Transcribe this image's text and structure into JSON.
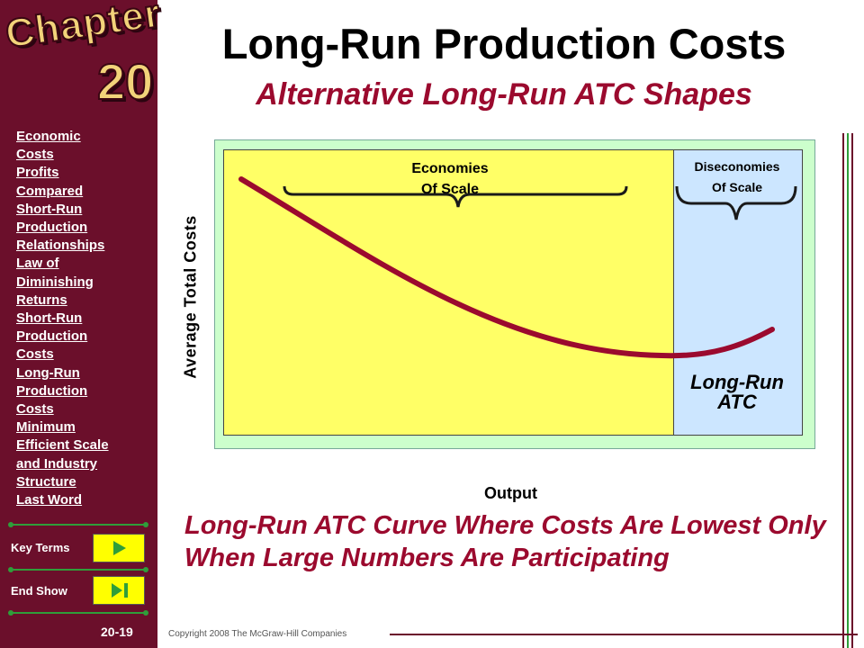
{
  "sidebar": {
    "chapter_word": "Chapter",
    "chapter_number": "20",
    "nav_items": [
      "Economic",
      "Costs",
      "Profits",
      "Compared",
      "Short-Run",
      "Production",
      "Relationships",
      "Law of",
      "Diminishing",
      "Returns",
      "Short-Run",
      "Production",
      "Costs",
      "Long-Run",
      "Production",
      "Costs",
      "Minimum",
      "Efficient Scale",
      "and Industry",
      "Structure",
      "Last Word"
    ],
    "key_terms_label": "Key Terms",
    "end_show_label": "End Show",
    "page_number": "20-19"
  },
  "slide": {
    "title": "Long-Run Production Costs",
    "subtitle": "Alternative Long-Run ATC Shapes",
    "caption": "Long-Run ATC Curve Where Costs Are Lowest Only When Large Numbers Are Participating"
  },
  "diagram": {
    "y_axis_label": "Average Total Costs",
    "x_axis_label": "Output",
    "economies_label_line1": "Economies",
    "economies_label_line2": "Of Scale",
    "diseconomies_label_line1": "Diseconomies",
    "diseconomies_label_line2": "Of Scale",
    "curve_label_line1": "Long-Run",
    "curve_label_line2": "ATC",
    "colors": {
      "economies_region": "#ffff66",
      "diseconomies_region": "#cce6ff",
      "frame": "#ccffcc",
      "curve": "#9b0a2e"
    }
  },
  "footer": {
    "copyright": "Copyright 2008 The McGraw-Hill Companies"
  }
}
